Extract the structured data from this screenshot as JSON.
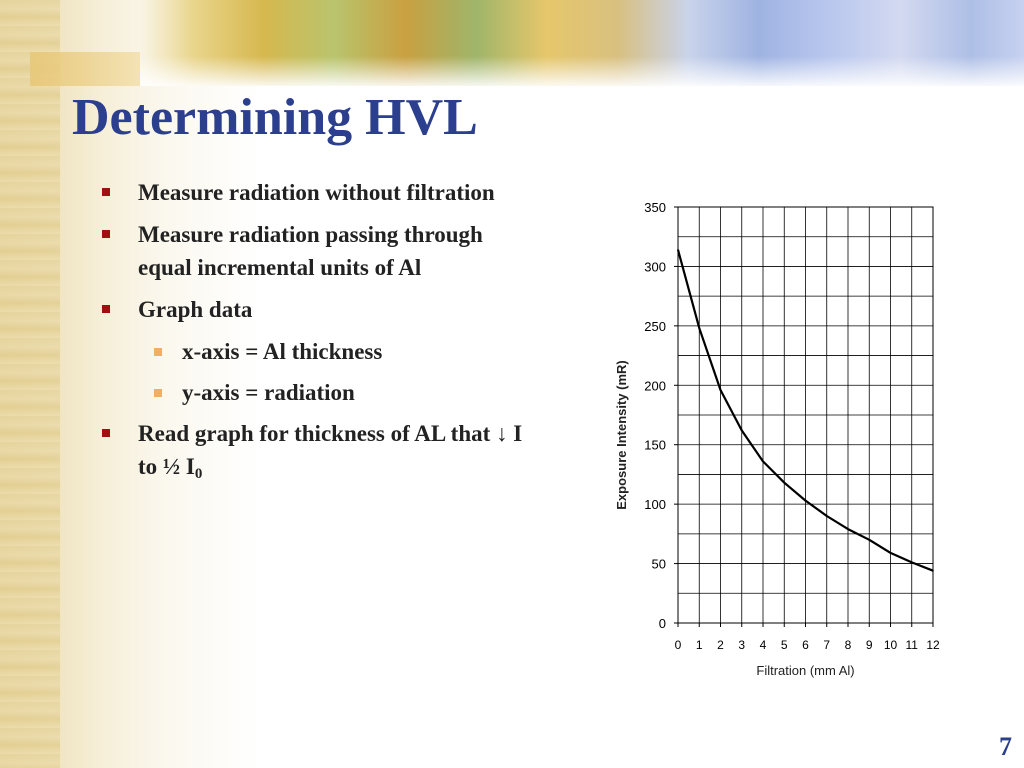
{
  "slide": {
    "title": "Determining HVL",
    "page_number": "7",
    "title_color": "#2b3f8e",
    "bullets": [
      {
        "level": 1,
        "text": "Measure radiation without filtration"
      },
      {
        "level": 1,
        "text": "Measure radiation passing through equal incremental units of Al"
      },
      {
        "level": 1,
        "text": "Graph data"
      },
      {
        "level": 2,
        "text": "x-axis = Al thickness"
      },
      {
        "level": 2,
        "text": "y-axis = radiation"
      },
      {
        "level": 1,
        "text_before": "Read graph for thickness of AL that ",
        "arrow": "↓",
        "text_middle": " I to ½ I",
        "subscript": "0"
      }
    ],
    "bullet_colors": {
      "level1": "#a01010",
      "level2": "#f0b060"
    }
  },
  "chart_data": {
    "type": "line",
    "title": "",
    "xlabel": "Filtration (mm Al)",
    "ylabel": "Exposure Intensity (mR)",
    "xlim": [
      0,
      12
    ],
    "ylim": [
      0,
      350
    ],
    "xticks": [
      0,
      1,
      2,
      3,
      4,
      5,
      6,
      7,
      8,
      9,
      10,
      11,
      12
    ],
    "yticks": [
      0,
      50,
      100,
      150,
      200,
      250,
      300,
      350
    ],
    "grid": true,
    "series": [
      {
        "color": "#000000",
        "x": [
          0,
          1,
          2,
          3,
          4,
          5,
          6,
          7,
          8,
          9,
          10,
          11,
          12
        ],
        "y": [
          314,
          248,
          196,
          162,
          136,
          118,
          103,
          90,
          79,
          70,
          59,
          51,
          44
        ]
      }
    ]
  }
}
